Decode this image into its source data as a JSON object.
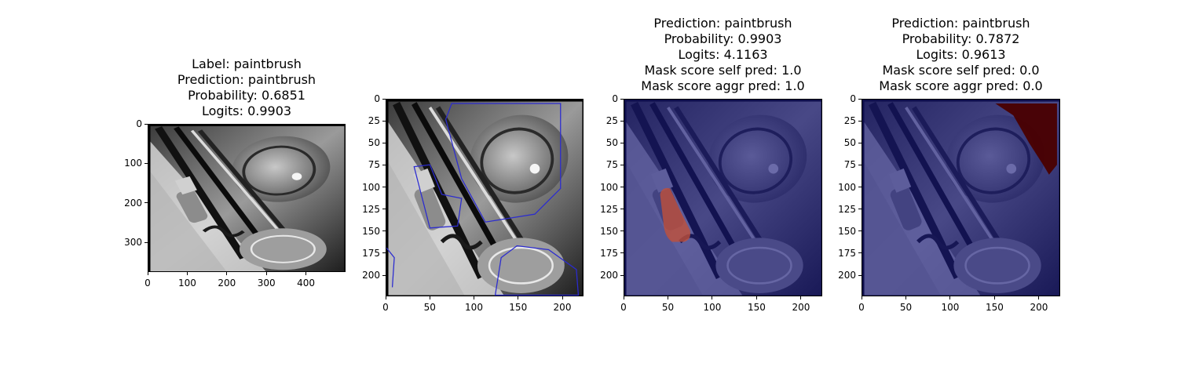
{
  "chart_data": [
    {
      "type": "image",
      "title_lines": [
        "Label: paintbrush",
        "Prediction: paintbrush",
        "Probability: 0.6851",
        "Logits: 0.9903"
      ],
      "xlim": [
        0,
        500
      ],
      "ylim": [
        375,
        0
      ],
      "xticks": [
        "0",
        "100",
        "200",
        "300",
        "400"
      ],
      "xtick_values": [
        0,
        100,
        200,
        300,
        400
      ],
      "yticks": [
        "0",
        "100",
        "200",
        "300"
      ],
      "ytick_values": [
        0,
        100,
        200,
        300
      ],
      "overlay": "none"
    },
    {
      "type": "image",
      "title_lines": [],
      "xlim": [
        0,
        224
      ],
      "ylim": [
        224,
        0
      ],
      "xticks": [
        "0",
        "50",
        "100",
        "150",
        "200"
      ],
      "xtick_values": [
        0,
        50,
        100,
        150,
        200
      ],
      "yticks": [
        "0",
        "25",
        "50",
        "75",
        "100",
        "125",
        "150",
        "175",
        "200"
      ],
      "ytick_values": [
        0,
        25,
        50,
        75,
        100,
        125,
        150,
        175,
        200
      ],
      "overlay": "segment-outlines"
    },
    {
      "type": "image",
      "title_lines": [
        "Prediction: paintbrush",
        "Probability: 0.9903",
        "Logits: 4.1163",
        "Mask score self pred: 1.0",
        "Mask score aggr pred: 1.0"
      ],
      "xlim": [
        0,
        224
      ],
      "ylim": [
        224,
        0
      ],
      "xticks": [
        "0",
        "50",
        "100",
        "150",
        "200"
      ],
      "xtick_values": [
        0,
        50,
        100,
        150,
        200
      ],
      "yticks": [
        "0",
        "25",
        "50",
        "75",
        "100",
        "125",
        "150",
        "175",
        "200"
      ],
      "ytick_values": [
        0,
        25,
        50,
        75,
        100,
        125,
        150,
        175,
        200
      ],
      "overlay": "mask-brush-segment",
      "mask_color": "#c0503a"
    },
    {
      "type": "image",
      "title_lines": [
        "Prediction: paintbrush",
        "Probability: 0.7872",
        "Logits: 0.9613",
        "Mask score self pred: 0.0",
        "Mask score aggr pred: 0.0"
      ],
      "xlim": [
        0,
        224
      ],
      "ylim": [
        224,
        0
      ],
      "xticks": [
        "0",
        "50",
        "100",
        "150",
        "200"
      ],
      "xtick_values": [
        0,
        50,
        100,
        150,
        200
      ],
      "yticks": [
        "0",
        "25",
        "50",
        "75",
        "100",
        "125",
        "150",
        "175",
        "200"
      ],
      "ytick_values": [
        0,
        25,
        50,
        75,
        100,
        125,
        150,
        175,
        200
      ],
      "overlay": "mask-corner-segment",
      "mask_color": "#4a0000"
    }
  ],
  "colors": {
    "mask_tint": "#16167a",
    "outline": "#2b2bd0"
  }
}
